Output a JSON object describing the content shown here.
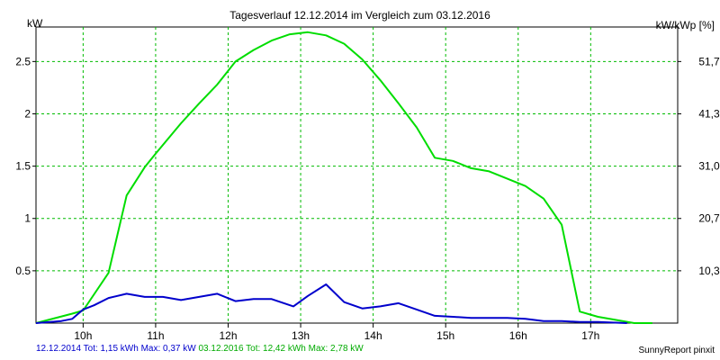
{
  "chart_data": {
    "type": "line",
    "title": "Tagesverlauf 12.12.2014 im Vergleich zum 03.12.2016",
    "ylabel_left": "kW",
    "ylabel_right": "kW/kWp [%]",
    "x_ticks": [
      {
        "label": "10h",
        "hour": 10
      },
      {
        "label": "11h",
        "hour": 11
      },
      {
        "label": "12h",
        "hour": 12
      },
      {
        "label": "13h",
        "hour": 13
      },
      {
        "label": "14h",
        "hour": 14
      },
      {
        "label": "15h",
        "hour": 15
      },
      {
        "label": "16h",
        "hour": 16
      },
      {
        "label": "17h",
        "hour": 17
      }
    ],
    "x_range": [
      9.35,
      18.2
    ],
    "y_left_ticks": [
      {
        "label": "0.5",
        "value": 0.5
      },
      {
        "label": "1",
        "value": 1
      },
      {
        "label": "1.5",
        "value": 1.5
      },
      {
        "label": "2",
        "value": 2
      },
      {
        "label": "2.5",
        "value": 2.5
      }
    ],
    "y_right_ticks": [
      {
        "label": "10,3",
        "value": 0.5
      },
      {
        "label": "20,7",
        "value": 1
      },
      {
        "label": "31,0",
        "value": 1.5
      },
      {
        "label": "41,3",
        "value": 2
      },
      {
        "label": "51,7",
        "value": 2.5
      }
    ],
    "ylim": [
      0,
      2.83
    ],
    "grid": true,
    "series": [
      {
        "name": "03.12.2016",
        "color": "#00dd00",
        "x": [
          9.35,
          9.85,
          10.0,
          10.35,
          10.6,
          10.85,
          11.0,
          11.35,
          11.6,
          11.85,
          12.1,
          12.35,
          12.6,
          12.85,
          13.1,
          13.35,
          13.6,
          13.85,
          14.1,
          14.35,
          14.6,
          14.85,
          15.1,
          15.35,
          15.6,
          15.85,
          16.1,
          16.35,
          16.6,
          16.85,
          17.1,
          17.6,
          17.85
        ],
        "y": [
          0.0,
          0.09,
          0.12,
          0.48,
          1.22,
          1.49,
          1.62,
          1.91,
          2.1,
          2.28,
          2.5,
          2.61,
          2.7,
          2.76,
          2.78,
          2.75,
          2.67,
          2.52,
          2.32,
          2.1,
          1.87,
          1.58,
          1.55,
          1.48,
          1.45,
          1.38,
          1.31,
          1.19,
          0.94,
          0.11,
          0.06,
          0.0,
          0.0
        ]
      },
      {
        "name": "12.12.2014",
        "color": "#0000cc",
        "x": [
          9.35,
          9.7,
          9.85,
          10.0,
          10.15,
          10.35,
          10.6,
          10.85,
          11.1,
          11.35,
          11.6,
          11.85,
          12.1,
          12.35,
          12.6,
          12.9,
          13.1,
          13.35,
          13.6,
          13.85,
          14.1,
          14.35,
          14.6,
          14.85,
          15.1,
          15.35,
          15.6,
          15.85,
          16.1,
          16.35,
          16.6,
          16.85,
          17.1,
          17.5
        ],
        "y": [
          0.0,
          0.02,
          0.04,
          0.13,
          0.17,
          0.24,
          0.28,
          0.25,
          0.25,
          0.22,
          0.25,
          0.28,
          0.21,
          0.23,
          0.23,
          0.16,
          0.26,
          0.37,
          0.2,
          0.14,
          0.16,
          0.19,
          0.13,
          0.07,
          0.06,
          0.05,
          0.05,
          0.05,
          0.04,
          0.02,
          0.02,
          0.01,
          0.01,
          0.0
        ]
      }
    ]
  },
  "footer": {
    "blue_text": "12.12.2014 Tot: 1,15 kWh Max: 0,37 kW",
    "green_text": "03.12.2016 Tot: 12,42 kWh Max: 2,78 kW",
    "blue_color": "#0000cc",
    "green_color": "#00aa00",
    "credit": "SunnyReport pinxit"
  }
}
